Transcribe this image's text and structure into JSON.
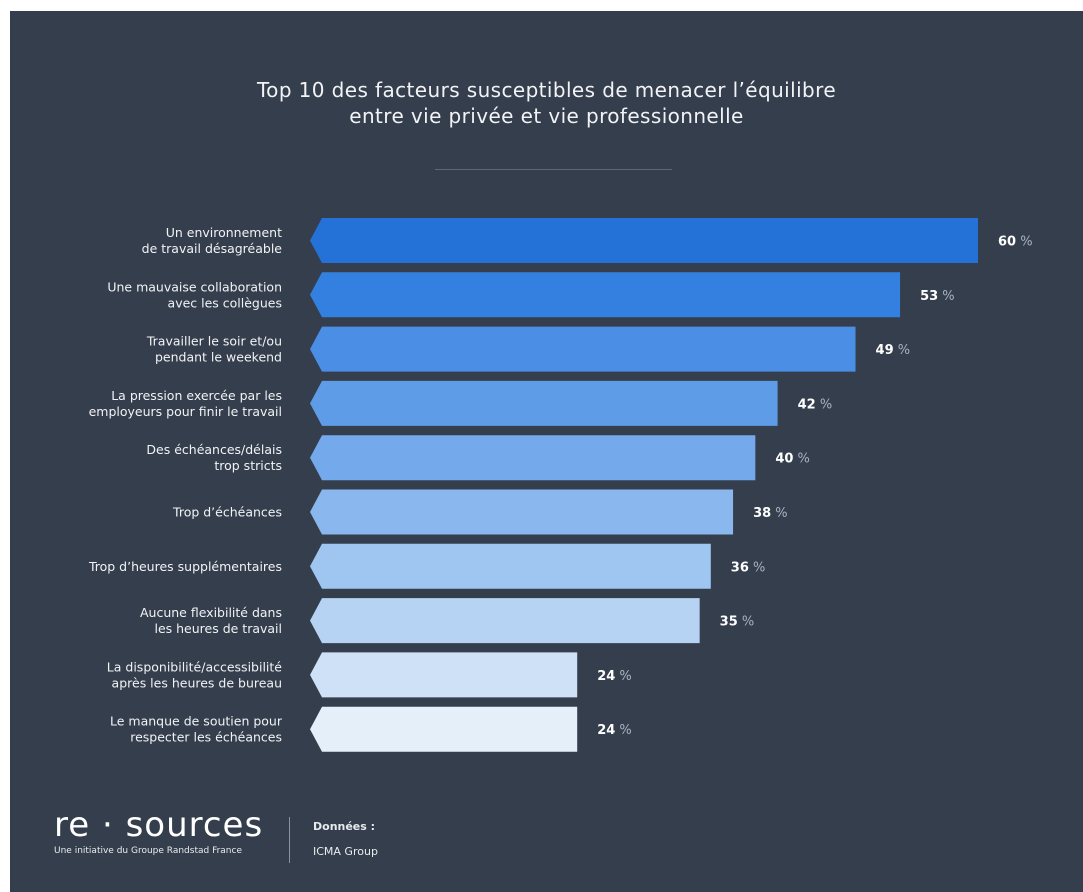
{
  "chart_data": {
    "type": "bar",
    "title": [
      "Top 10 des facteurs susceptibles de menacer l’équilibre",
      "entre vie privée et vie professionnelle"
    ],
    "orientation": "horizontal",
    "unit_suffix": " %",
    "categories": [
      [
        "Un environnement",
        "de travail désagréable"
      ],
      [
        "Une mauvaise collaboration",
        "avec les collègues"
      ],
      [
        "Travailler le soir et/ou",
        "pendant le weekend"
      ],
      [
        "La pression exercée par les",
        "employeurs pour finir le travail"
      ],
      [
        "Des échéances/délais",
        "trop stricts"
      ],
      [
        "Trop d’échéances"
      ],
      [
        "Trop d’heures supplémentaires"
      ],
      [
        "Aucune flexibilité dans",
        "les heures de travail"
      ],
      [
        "La disponibilité/accessibilité",
        "après les heures de bureau"
      ],
      [
        "Le manque de soutien pour",
        "respecter les échéances"
      ]
    ],
    "values": [
      60,
      53,
      49,
      42,
      40,
      38,
      36,
      35,
      24,
      24
    ],
    "colors": [
      "#2472d7",
      "#3480e0",
      "#4a8ee5",
      "#5e9ce8",
      "#74a9eb",
      "#8ab7ee",
      "#9fc5f1",
      "#b6d3f4",
      "#cfe1f7",
      "#e4effa"
    ],
    "xlim": [
      0,
      60
    ],
    "grid": false,
    "legend": "none"
  },
  "footer": {
    "logo": "re · sources",
    "logo_subtitle": "Une initiative du Groupe Randstad France",
    "source_label": "Données :",
    "source_value": "ICMA Group"
  }
}
